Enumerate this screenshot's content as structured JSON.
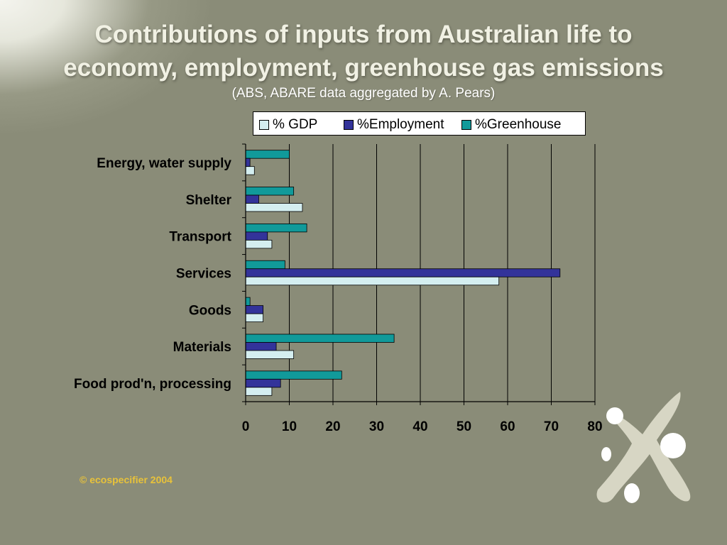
{
  "slide": {
    "title_line1": "Contributions of inputs from Australian life to",
    "title_line2": "economy, employment, greenhouse gas emissions",
    "subtitle": "(ABS, ABARE data aggregated by A. Pears)",
    "copyright": "© ecospecifier 2004",
    "background_color": "#8a8c78",
    "title_color": "#f1f1e4",
    "copyright_color": "#e8c23a"
  },
  "chart_data": {
    "type": "bar",
    "orientation": "horizontal",
    "categories": [
      "Energy, water supply",
      "Shelter",
      "Transport",
      "Services",
      "Goods",
      "Materials",
      "Food prod'n, processing"
    ],
    "series": [
      {
        "name": "% GDP",
        "color": "#d4eef0",
        "values": [
          2,
          13,
          6,
          58,
          4,
          11,
          6
        ]
      },
      {
        "name": "%Employment",
        "color": "#33339a",
        "values": [
          1,
          3,
          5,
          72,
          4,
          7,
          8
        ]
      },
      {
        "name": "%Greenhouse",
        "color": "#119a9a",
        "values": [
          10,
          11,
          14,
          9,
          1,
          34,
          22
        ]
      }
    ],
    "xlim": [
      0,
      80
    ],
    "xticks": [
      0,
      10,
      20,
      30,
      40,
      50,
      60,
      70,
      80
    ],
    "grid": true,
    "legend_position": "top"
  }
}
